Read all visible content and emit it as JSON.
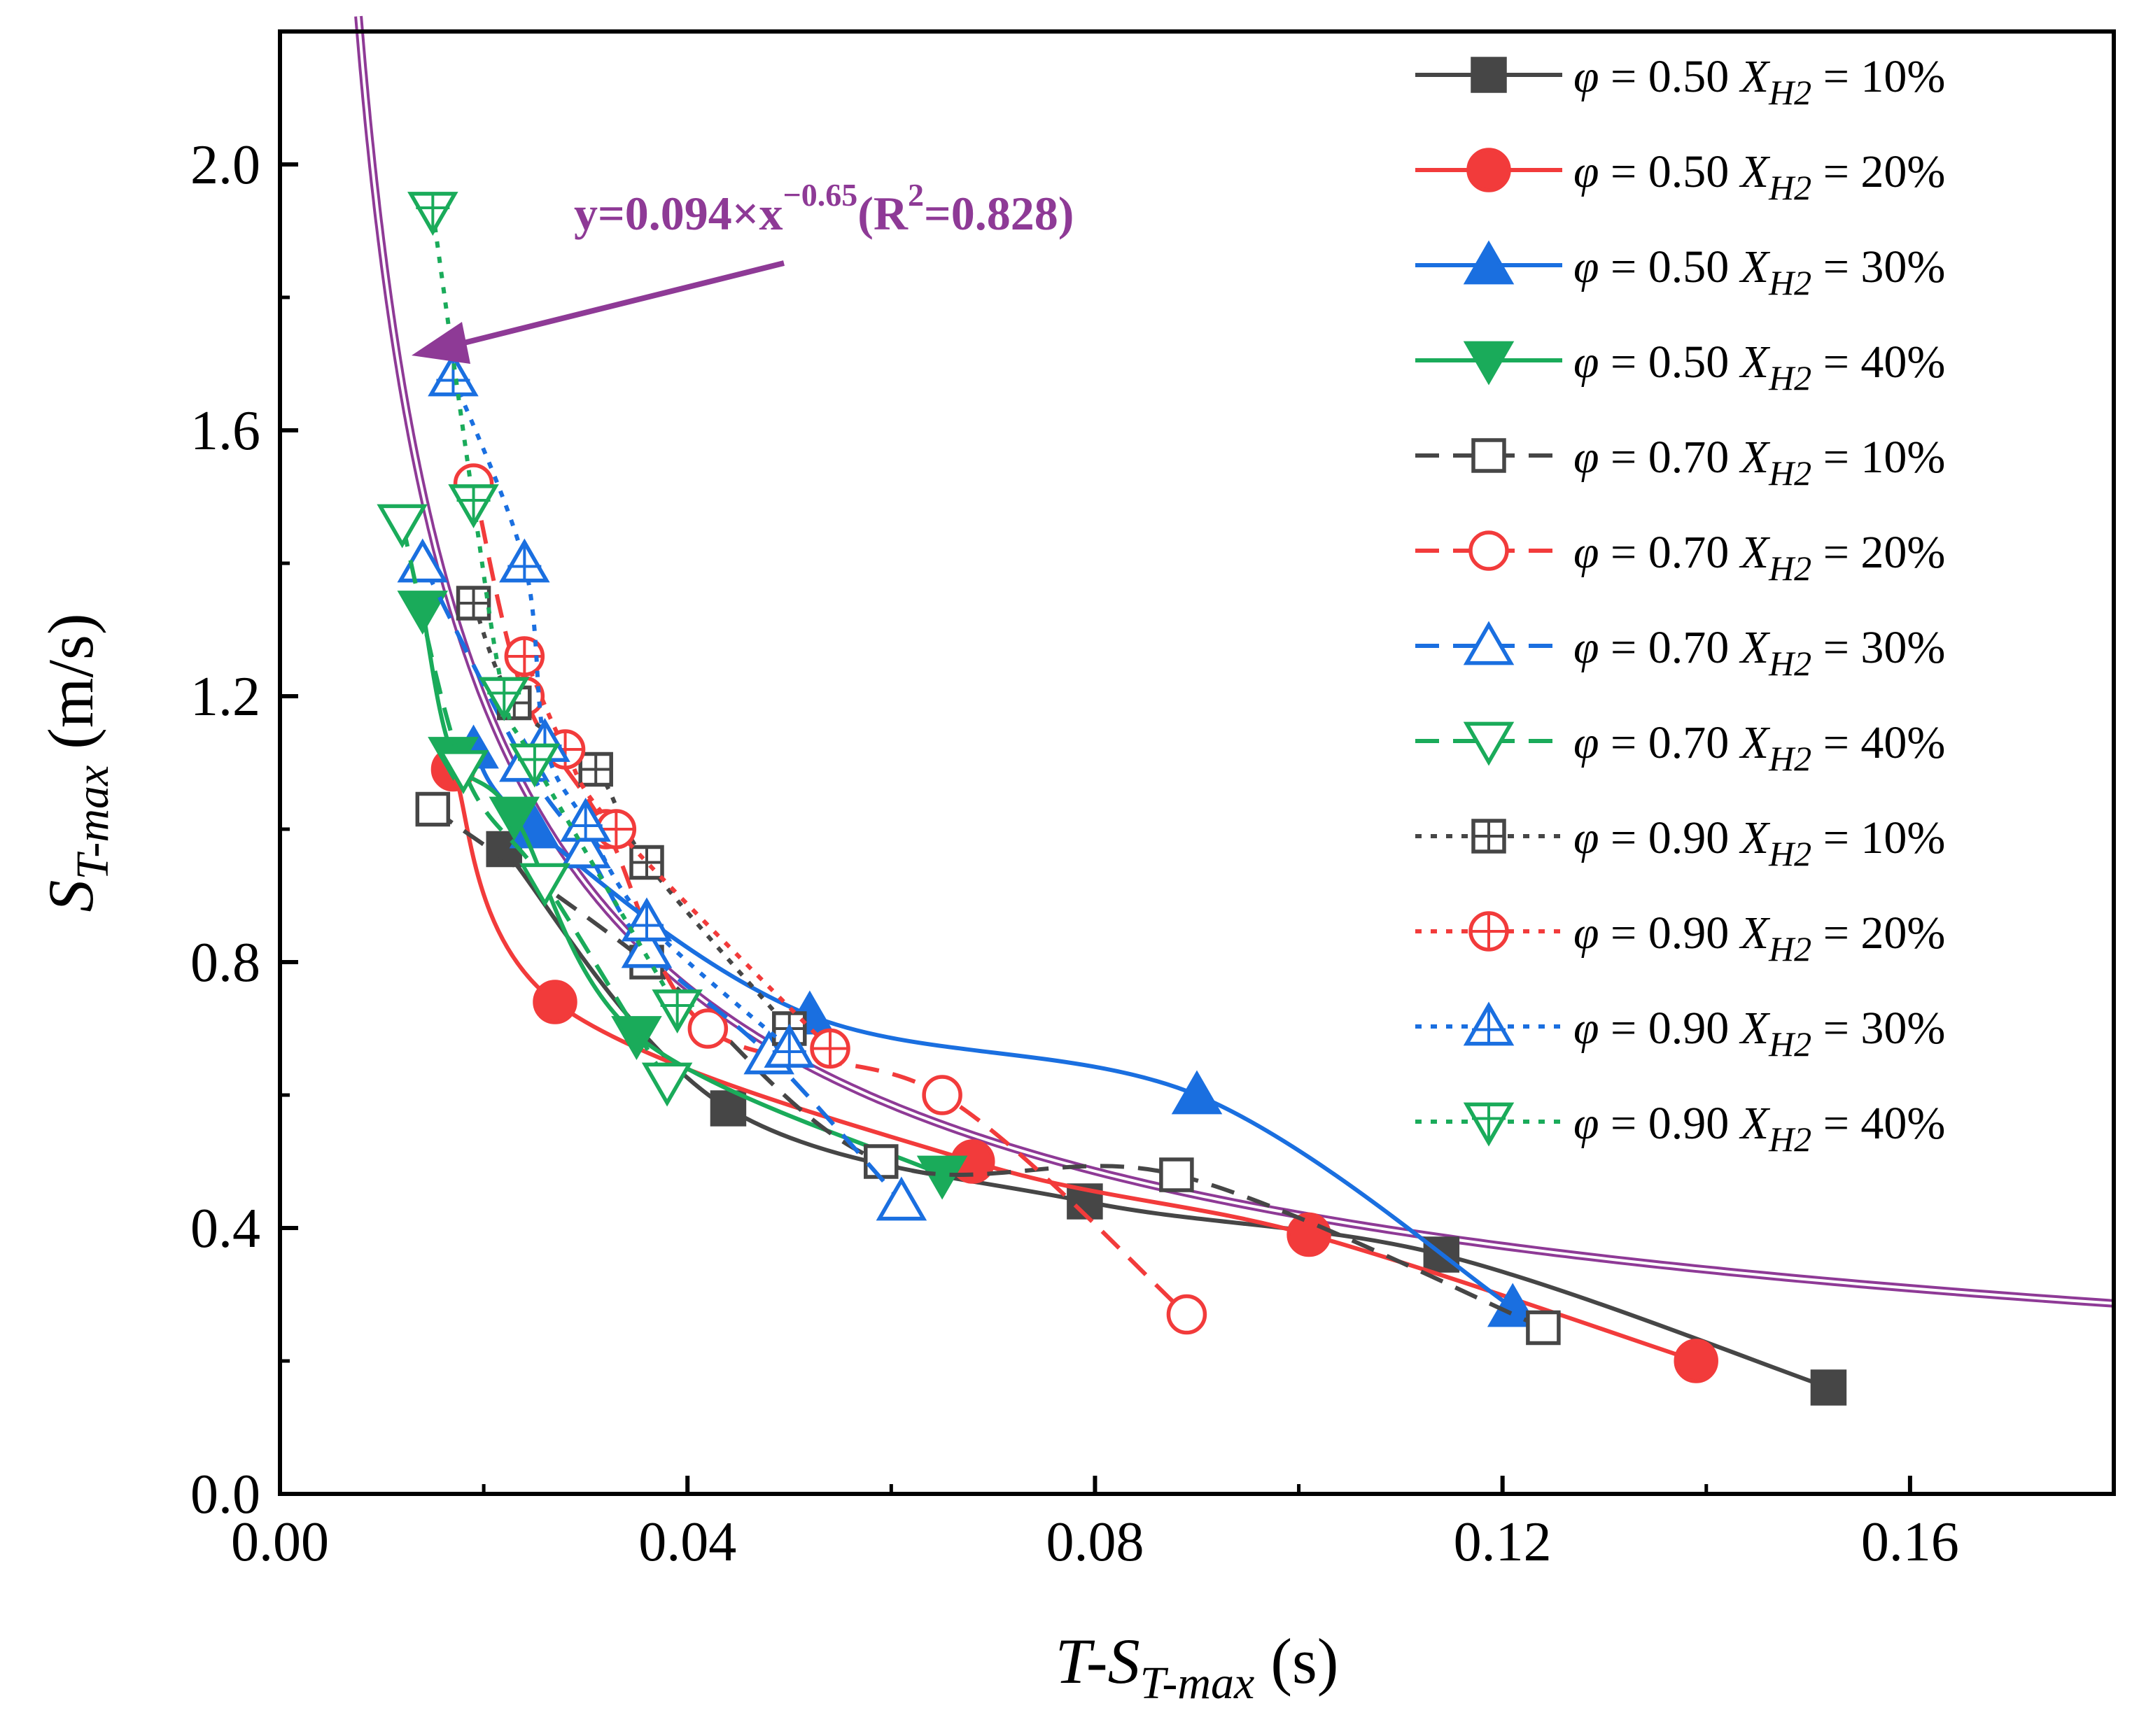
{
  "chart_data": {
    "type": "scatter",
    "xlabel": {
      "main": "T-S",
      "sub": "T-max",
      "unit": " (s)"
    },
    "ylabel": {
      "main": "S",
      "sub": "T-max",
      "unit": " (m/s)"
    },
    "xlim": [
      0,
      0.18
    ],
    "ylim": [
      0,
      2.2
    ],
    "xticks": [
      0.0,
      0.04,
      0.08,
      0.12,
      0.16
    ],
    "xtick_labels": [
      "0.00",
      "0.04",
      "0.08",
      "0.12",
      "0.16"
    ],
    "yticks": [
      0.0,
      0.4,
      0.8,
      1.2,
      1.6,
      2.0
    ],
    "ytick_labels": [
      "0.0",
      "0.4",
      "0.8",
      "1.2",
      "1.6",
      "2.0"
    ],
    "grid": false,
    "legend_position": "top-right",
    "fit": {
      "a": 0.094,
      "b": -0.65,
      "color": "#8e3a96",
      "label_prefix": "y=0.094×x",
      "label_exp": "−0.65",
      "label_mid": "(R",
      "label_exp2": "2",
      "label_suffix": "=0.828)"
    },
    "series": [
      {
        "phi": "φ",
        "eq1": " = 0.50 ",
        "xsym": "X",
        "xsub": "H2",
        "eq2": " = 10%",
        "color": "#464646",
        "marker": "square",
        "filled": true,
        "line": "solid",
        "points": [
          [
            0.022,
            0.97
          ],
          [
            0.044,
            0.58
          ],
          [
            0.079,
            0.44
          ],
          [
            0.114,
            0.36
          ],
          [
            0.152,
            0.16
          ]
        ]
      },
      {
        "phi": "φ",
        "eq1": " = 0.50 ",
        "xsym": "X",
        "xsub": "H2",
        "eq2": " = 20%",
        "color": "#f23b3b",
        "marker": "circle",
        "filled": true,
        "line": "solid",
        "points": [
          [
            0.017,
            1.09
          ],
          [
            0.027,
            0.74
          ],
          [
            0.068,
            0.5
          ],
          [
            0.101,
            0.39
          ],
          [
            0.139,
            0.2
          ]
        ]
      },
      {
        "phi": "φ",
        "eq1": " = 0.50 ",
        "xsym": "X",
        "xsub": "H2",
        "eq2": " = 30%",
        "color": "#1a6fe0",
        "marker": "triangle",
        "filled": true,
        "line": "solid",
        "points": [
          [
            0.019,
            1.12
          ],
          [
            0.025,
            1.0
          ],
          [
            0.052,
            0.72
          ],
          [
            0.09,
            0.6
          ],
          [
            0.121,
            0.28
          ]
        ]
      },
      {
        "phi": "φ",
        "eq1": " = 0.50 ",
        "xsym": "X",
        "xsub": "H2",
        "eq2": " = 40%",
        "color": "#1aab5a",
        "marker": "triangle-down",
        "filled": true,
        "line": "solid",
        "points": [
          [
            0.014,
            1.33
          ],
          [
            0.017,
            1.11
          ],
          [
            0.023,
            1.02
          ],
          [
            0.035,
            0.69
          ],
          [
            0.065,
            0.48
          ]
        ]
      },
      {
        "phi": "φ",
        "eq1": " = 0.70 ",
        "xsym": "X",
        "xsub": "H2",
        "eq2": " = 10%",
        "color": "#464646",
        "marker": "square",
        "filled": false,
        "line": "dashed",
        "points": [
          [
            0.015,
            1.03
          ],
          [
            0.036,
            0.8
          ],
          [
            0.059,
            0.5
          ],
          [
            0.088,
            0.48
          ],
          [
            0.124,
            0.25
          ]
        ]
      },
      {
        "phi": "φ",
        "eq1": " = 0.70 ",
        "xsym": "X",
        "xsub": "H2",
        "eq2": " = 20%",
        "color": "#f23b3b",
        "marker": "circle",
        "filled": false,
        "line": "dashed",
        "points": [
          [
            0.019,
            1.52
          ],
          [
            0.024,
            1.2
          ],
          [
            0.032,
            1.0
          ],
          [
            0.042,
            0.7
          ],
          [
            0.065,
            0.6
          ],
          [
            0.089,
            0.27
          ]
        ]
      },
      {
        "phi": "φ",
        "eq1": " = 0.70 ",
        "xsym": "X",
        "xsub": "H2",
        "eq2": " = 30%",
        "color": "#1a6fe0",
        "marker": "triangle",
        "filled": false,
        "line": "dashed",
        "points": [
          [
            0.014,
            1.4
          ],
          [
            0.024,
            1.1
          ],
          [
            0.03,
            0.97
          ],
          [
            0.036,
            0.82
          ],
          [
            0.048,
            0.66
          ],
          [
            0.061,
            0.44
          ]
        ]
      },
      {
        "phi": "φ",
        "eq1": " = 0.70 ",
        "xsym": "X",
        "xsub": "H2",
        "eq2": " = 40%",
        "color": "#1aab5a",
        "marker": "triangle-down",
        "filled": false,
        "line": "dashed",
        "points": [
          [
            0.012,
            1.46
          ],
          [
            0.018,
            1.09
          ],
          [
            0.026,
            0.92
          ],
          [
            0.038,
            0.62
          ]
        ]
      },
      {
        "phi": "φ",
        "eq1": " = 0.90 ",
        "xsym": "X",
        "xsub": "H2",
        "eq2": " = 10%",
        "color": "#464646",
        "marker": "square-cross",
        "filled": false,
        "line": "dotted",
        "points": [
          [
            0.019,
            1.34
          ],
          [
            0.023,
            1.19
          ],
          [
            0.031,
            1.09
          ],
          [
            0.036,
            0.95
          ],
          [
            0.05,
            0.7
          ]
        ]
      },
      {
        "phi": "φ",
        "eq1": " = 0.90 ",
        "xsym": "X",
        "xsub": "H2",
        "eq2": " = 20%",
        "color": "#f23b3b",
        "marker": "circle-cross",
        "filled": false,
        "line": "dotted",
        "points": [
          [
            0.024,
            1.26
          ],
          [
            0.028,
            1.12
          ],
          [
            0.033,
            1.0
          ],
          [
            0.054,
            0.67
          ]
        ]
      },
      {
        "phi": "φ",
        "eq1": " = 0.90 ",
        "xsym": "X",
        "xsub": "H2",
        "eq2": " = 30%",
        "color": "#1a6fe0",
        "marker": "triangle-cross",
        "filled": false,
        "line": "dotted",
        "points": [
          [
            0.017,
            1.68
          ],
          [
            0.024,
            1.4
          ],
          [
            0.026,
            1.13
          ],
          [
            0.03,
            1.01
          ],
          [
            0.036,
            0.86
          ],
          [
            0.05,
            0.67
          ]
        ]
      },
      {
        "phi": "φ",
        "eq1": " = 0.90 ",
        "xsym": "X",
        "xsub": "H2",
        "eq2": " = 40%",
        "color": "#1aab5a",
        "marker": "triangle-down-cross",
        "filled": false,
        "line": "dotted",
        "points": [
          [
            0.015,
            1.93
          ],
          [
            0.019,
            1.49
          ],
          [
            0.022,
            1.2
          ],
          [
            0.025,
            1.1
          ],
          [
            0.039,
            0.73
          ]
        ]
      }
    ]
  }
}
